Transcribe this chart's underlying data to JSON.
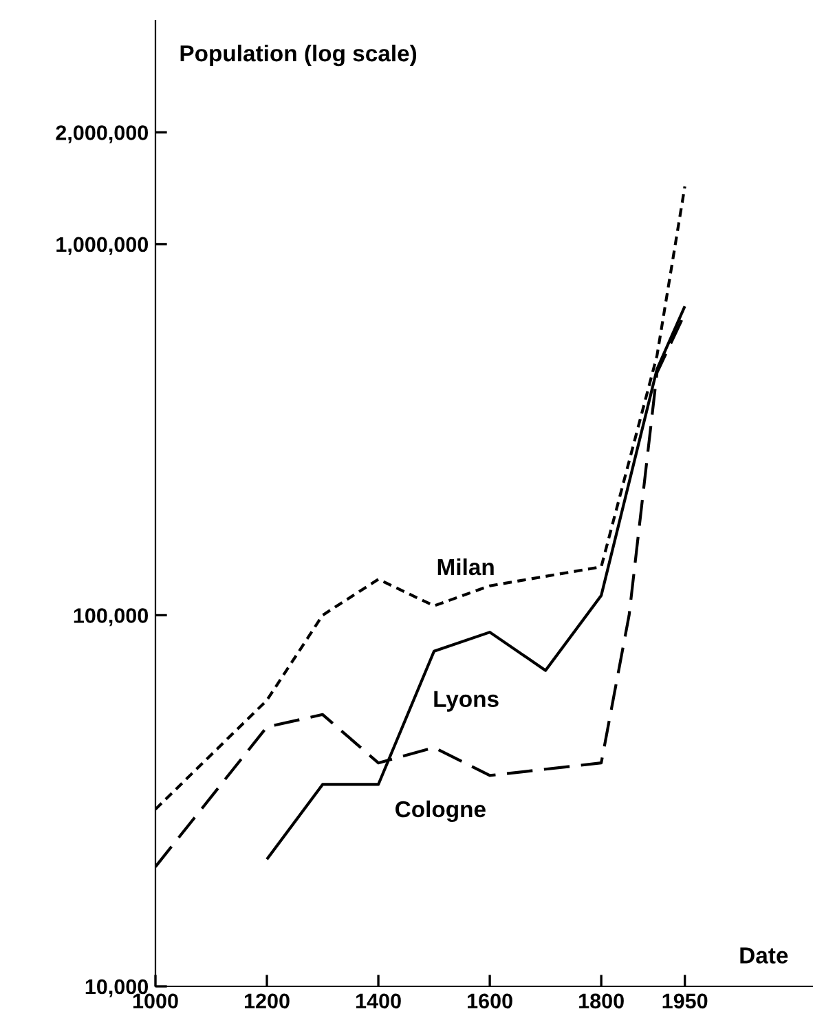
{
  "chart_data": {
    "type": "line",
    "ylabel": "Population (log scale)",
    "xlabel": "Date",
    "log": "y",
    "xlim": [
      1000,
      2180
    ],
    "xticks": [
      1000,
      1200,
      1400,
      1600,
      1800,
      1950
    ],
    "ylim": [
      10000,
      4000000
    ],
    "yticks": [
      {
        "value": 10000,
        "label": "10,000"
      },
      {
        "value": 100000,
        "label": "100,000"
      },
      {
        "value": 1000000,
        "label": "1,000,000"
      },
      {
        "value": 2000000,
        "label": "2,000,000"
      }
    ],
    "grid": false,
    "legend": false,
    "marker": "none",
    "series": [
      {
        "name": "Milan",
        "color": "#000000",
        "line_style": "dotted",
        "x": [
          1000,
          1200,
          1300,
          1400,
          1500,
          1600,
          1800,
          1900,
          1950
        ],
        "values": [
          30000,
          59000,
          100000,
          125000,
          106000,
          120000,
          135000,
          500000,
          1430000
        ]
      },
      {
        "name": "Lyons",
        "color": "#000000",
        "line_style": "solid",
        "x": [
          1200,
          1300,
          1400,
          1500,
          1600,
          1700,
          1800,
          1900,
          1950
        ],
        "values": [
          22000,
          35000,
          35000,
          80000,
          90000,
          71000,
          113000,
          460000,
          680000
        ]
      },
      {
        "name": "Cologne",
        "color": "#000000",
        "line_style": "dashed",
        "x": [
          1000,
          1200,
          1300,
          1400,
          1500,
          1600,
          1800,
          1850,
          1900,
          1950
        ],
        "values": [
          21000,
          50000,
          54000,
          40000,
          44000,
          37000,
          40000,
          100000,
          450000,
          650000
        ]
      }
    ]
  }
}
